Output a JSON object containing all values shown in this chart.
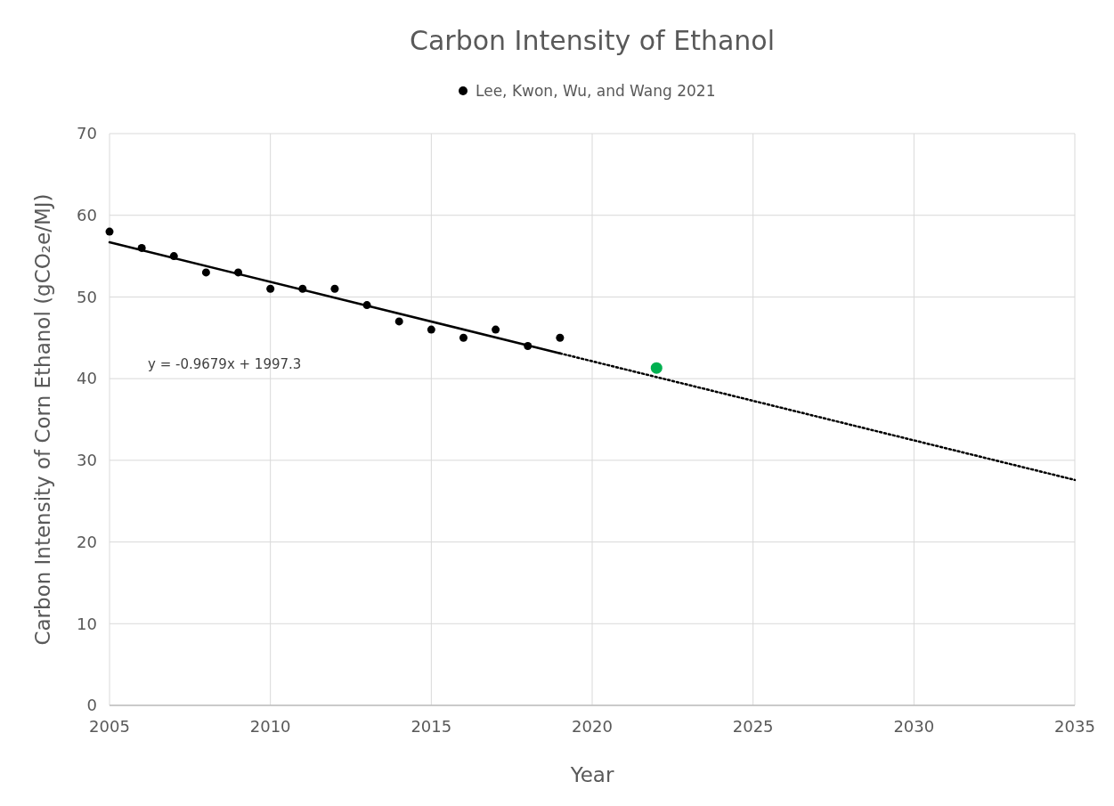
{
  "chart_data": {
    "type": "scatter",
    "title": "Carbon Intensity of Ethanol",
    "xlabel": "Year",
    "ylabel": "Carbon Intensity of Corn Ethanol (gCO₂e/MJ)",
    "xlim": [
      2005,
      2035
    ],
    "xticks": [
      2005,
      2010,
      2015,
      2020,
      2025,
      2030,
      2035
    ],
    "ylim": [
      0,
      70
    ],
    "yticks": [
      0,
      10,
      20,
      30,
      40,
      50,
      60,
      70
    ],
    "grid": true,
    "legend": "top",
    "marker": "circle",
    "series": [
      {
        "name": "Lee, Kwon, Wu, and Wang 2021",
        "color": "#000000",
        "x": [
          2005,
          2006,
          2007,
          2008,
          2009,
          2010,
          2011,
          2012,
          2013,
          2014,
          2015,
          2016,
          2017,
          2018,
          2019
        ],
        "values": [
          58,
          56,
          55,
          53,
          53,
          51,
          51,
          51,
          49,
          47,
          46,
          45,
          46,
          44,
          45
        ]
      },
      {
        "color": "#00b050",
        "x": [
          2022
        ],
        "values": [
          41.3
        ]
      },
      {
        "type": "line",
        "marker": "none",
        "color": "#000000",
        "line_style": "solid",
        "x": [
          2005,
          2019
        ],
        "values": [
          56.7,
          43.1
        ]
      },
      {
        "type": "line",
        "marker": "none",
        "color": "#000000",
        "line_style": "dotted",
        "x": [
          2019,
          2035
        ],
        "values": [
          43.1,
          27.6
        ]
      }
    ],
    "annotations": [
      "y = -0.9679x + 1997.3"
    ]
  }
}
